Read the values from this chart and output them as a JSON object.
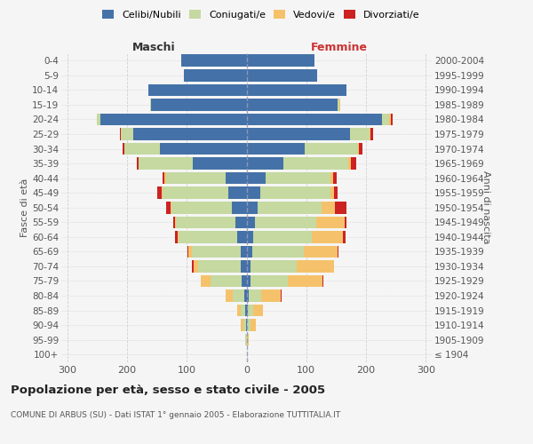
{
  "age_groups": [
    "0-4",
    "5-9",
    "10-14",
    "15-19",
    "20-24",
    "25-29",
    "30-34",
    "35-39",
    "40-44",
    "45-49",
    "50-54",
    "55-59",
    "60-64",
    "65-69",
    "70-74",
    "75-79",
    "80-84",
    "85-89",
    "90-94",
    "95-99",
    "100+"
  ],
  "birth_years": [
    "2000-2004",
    "1995-1999",
    "1990-1994",
    "1985-1989",
    "1980-1984",
    "1975-1979",
    "1970-1974",
    "1965-1969",
    "1960-1964",
    "1955-1959",
    "1950-1954",
    "1945-1949",
    "1940-1944",
    "1935-1939",
    "1930-1934",
    "1925-1929",
    "1920-1924",
    "1915-1919",
    "1910-1914",
    "1905-1909",
    "≤ 1904"
  ],
  "male_celibi": [
    110,
    105,
    165,
    160,
    245,
    190,
    145,
    90,
    35,
    30,
    25,
    18,
    15,
    10,
    9,
    8,
    3,
    2,
    1,
    0,
    0
  ],
  "male_coniugati": [
    0,
    0,
    0,
    1,
    5,
    20,
    60,
    90,
    100,
    110,
    100,
    100,
    98,
    82,
    72,
    52,
    20,
    8,
    4,
    2,
    0
  ],
  "male_vedovi": [
    0,
    0,
    0,
    0,
    0,
    0,
    0,
    0,
    2,
    2,
    2,
    2,
    2,
    5,
    8,
    16,
    12,
    6,
    4,
    0,
    0
  ],
  "male_divorziati": [
    0,
    0,
    0,
    0,
    1,
    2,
    2,
    3,
    3,
    8,
    8,
    3,
    4,
    2,
    2,
    0,
    0,
    0,
    0,
    0,
    0
  ],
  "female_nubili": [
    113,
    118,
    168,
    152,
    226,
    173,
    98,
    62,
    32,
    23,
    18,
    14,
    11,
    9,
    7,
    7,
    3,
    2,
    1,
    0,
    0
  ],
  "female_coniugate": [
    0,
    0,
    0,
    4,
    13,
    33,
    88,
    108,
    108,
    118,
    108,
    102,
    98,
    87,
    77,
    62,
    22,
    9,
    5,
    1,
    0
  ],
  "female_vedove": [
    0,
    0,
    0,
    1,
    2,
    2,
    2,
    5,
    5,
    6,
    22,
    48,
    52,
    57,
    62,
    58,
    32,
    17,
    10,
    3,
    0
  ],
  "female_divorziate": [
    0,
    0,
    0,
    0,
    4,
    4,
    6,
    9,
    6,
    6,
    20,
    3,
    5,
    1,
    1,
    1,
    1,
    0,
    0,
    0,
    0
  ],
  "colors": {
    "celibi_nubili": "#4472a8",
    "coniugati": "#c5d9a0",
    "vedovi": "#f5c26b",
    "divorziati": "#cc2222"
  },
  "xlim": 310,
  "title": "Popolazione per età, sesso e stato civile - 2005",
  "subtitle": "COMUNE DI ARBUS (SU) - Dati ISTAT 1° gennaio 2005 - Elaborazione TUTTITALIA.IT",
  "ylabel_left": "Fasce di età",
  "ylabel_right": "Anni di nascita",
  "xlabel_left": "Maschi",
  "xlabel_right": "Femmine",
  "bg_color": "#f5f5f5",
  "grid_color": "#cccccc"
}
